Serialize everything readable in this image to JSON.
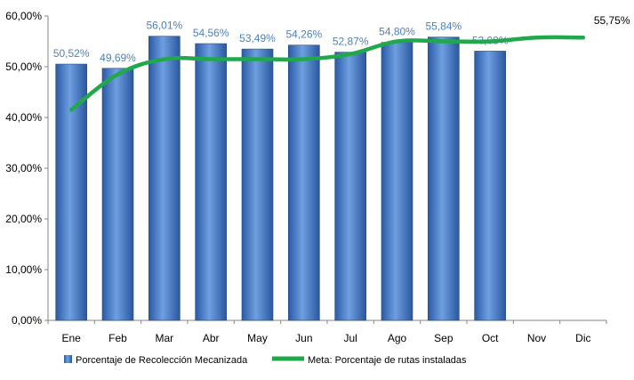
{
  "chart_data": {
    "type": "bar",
    "categories": [
      "Ene",
      "Feb",
      "Mar",
      "Abr",
      "May",
      "Jun",
      "Jul",
      "Ago",
      "Sep",
      "Oct",
      "Nov",
      "Dic"
    ],
    "series": [
      {
        "name": "Porcentaje de Recolección Mecanizada",
        "type": "bar",
        "values": [
          50.52,
          49.69,
          56.01,
          54.56,
          53.49,
          54.26,
          52.87,
          54.8,
          55.84,
          53.08,
          null,
          null
        ],
        "labels": [
          "50,52%",
          "49,69%",
          "56,01%",
          "54,56%",
          "53,49%",
          "54,26%",
          "52,87%",
          "54,80%",
          "55,84%",
          "53,08%",
          "",
          ""
        ],
        "color": "#3A6FC2"
      },
      {
        "name": "Meta: Porcentaje de rutas instaladas",
        "type": "line",
        "values": [
          41.5,
          48.5,
          51.5,
          51.5,
          51.5,
          51.5,
          52.5,
          55.0,
          55.0,
          55.0,
          55.75,
          55.75
        ],
        "end_label": "55,75%",
        "color": "#21A84B"
      }
    ],
    "ylim": [
      0,
      60
    ],
    "yticks": [
      "0,00%",
      "10,00%",
      "20,00%",
      "30,00%",
      "40,00%",
      "50,00%",
      "60,00%"
    ],
    "grid": false,
    "legend": "bottom"
  },
  "legend": {
    "bar_label": "Porcentaje de Recolección Mecanizada",
    "line_label": "Meta: Porcentaje de rutas instaladas"
  }
}
